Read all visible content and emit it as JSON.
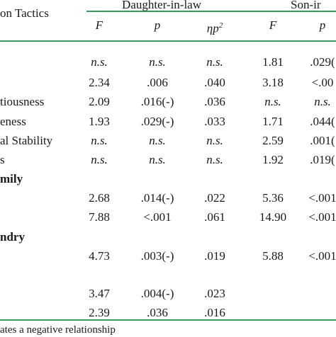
{
  "header": {
    "first_col": "on Tactics",
    "group_dil": "Daughter-in-law",
    "group_sil": "Son-ir",
    "dil_cols": [
      "F",
      "p",
      "ηp2"
    ],
    "sil_cols": [
      "F",
      "p"
    ],
    "eta_base": "ηp",
    "eta_sup": "2"
  },
  "rows": [
    {
      "label": "",
      "dil_F": "n.s.",
      "dil_p": "n.s.",
      "dil_eta": "n.s.",
      "sil_F": "1.81",
      "sil_p": ".029(",
      "ns": true
    },
    {
      "label": "",
      "dil_F": "2.34",
      "dil_p": ".006",
      "dil_eta": ".040",
      "sil_F": "3.18",
      "sil_p": "<.00",
      "ns": false
    },
    {
      "label": "tiousness",
      "dil_F": "2.09",
      "dil_p": ".016(-)",
      "dil_eta": ".036",
      "sil_F": "n.s.",
      "sil_p": "n.s.",
      "ns": false
    },
    {
      "label": "eness",
      "dil_F": "1.93",
      "dil_p": ".029(-)",
      "dil_eta": ".033",
      "sil_F": "1.71",
      "sil_p": ".044(",
      "ns": false
    },
    {
      "label": "al Stability",
      "dil_F": "n.s.",
      "dil_p": "n.s.",
      "dil_eta": "n.s.",
      "sil_F": "2.59",
      "sil_p": ".001(",
      "ns": true
    },
    {
      "label": "s",
      "dil_F": "n.s.",
      "dil_p": "n.s.",
      "dil_eta": "n.s.",
      "sil_F": "1.92",
      "sil_p": ".019(",
      "ns": true
    },
    {
      "label": "mily",
      "section": true
    },
    {
      "label": "",
      "dil_F": "2.68",
      "dil_p": ".014(-)",
      "dil_eta": ".022",
      "sil_F": "5.36",
      "sil_p": "<.001",
      "ns": false
    },
    {
      "label": "",
      "dil_F": "7.88",
      "dil_p": "<.001",
      "dil_eta": ".061",
      "sil_F": "14.90",
      "sil_p": "<.001",
      "ns": false
    },
    {
      "label": "ndry",
      "section": true
    },
    {
      "label": "",
      "dil_F": "4.73",
      "dil_p": ".003(-)",
      "dil_eta": ".019",
      "sil_F": "5.88",
      "sil_p": "<.001",
      "ns": false
    },
    {
      "label": "",
      "dil_F": "3.47",
      "dil_p": ".004(-)",
      "dil_eta": ".023",
      "sil_F": "",
      "sil_p": "",
      "ns": false
    },
    {
      "label": "",
      "dil_F": "2.39",
      "dil_p": ".036",
      "dil_eta": ".016",
      "sil_F": "",
      "sil_p": "",
      "ns": false
    }
  ],
  "footnote": "ates a negative relationship",
  "colors": {
    "rule": "#3a9a5b",
    "text": "#1a1a1a"
  }
}
